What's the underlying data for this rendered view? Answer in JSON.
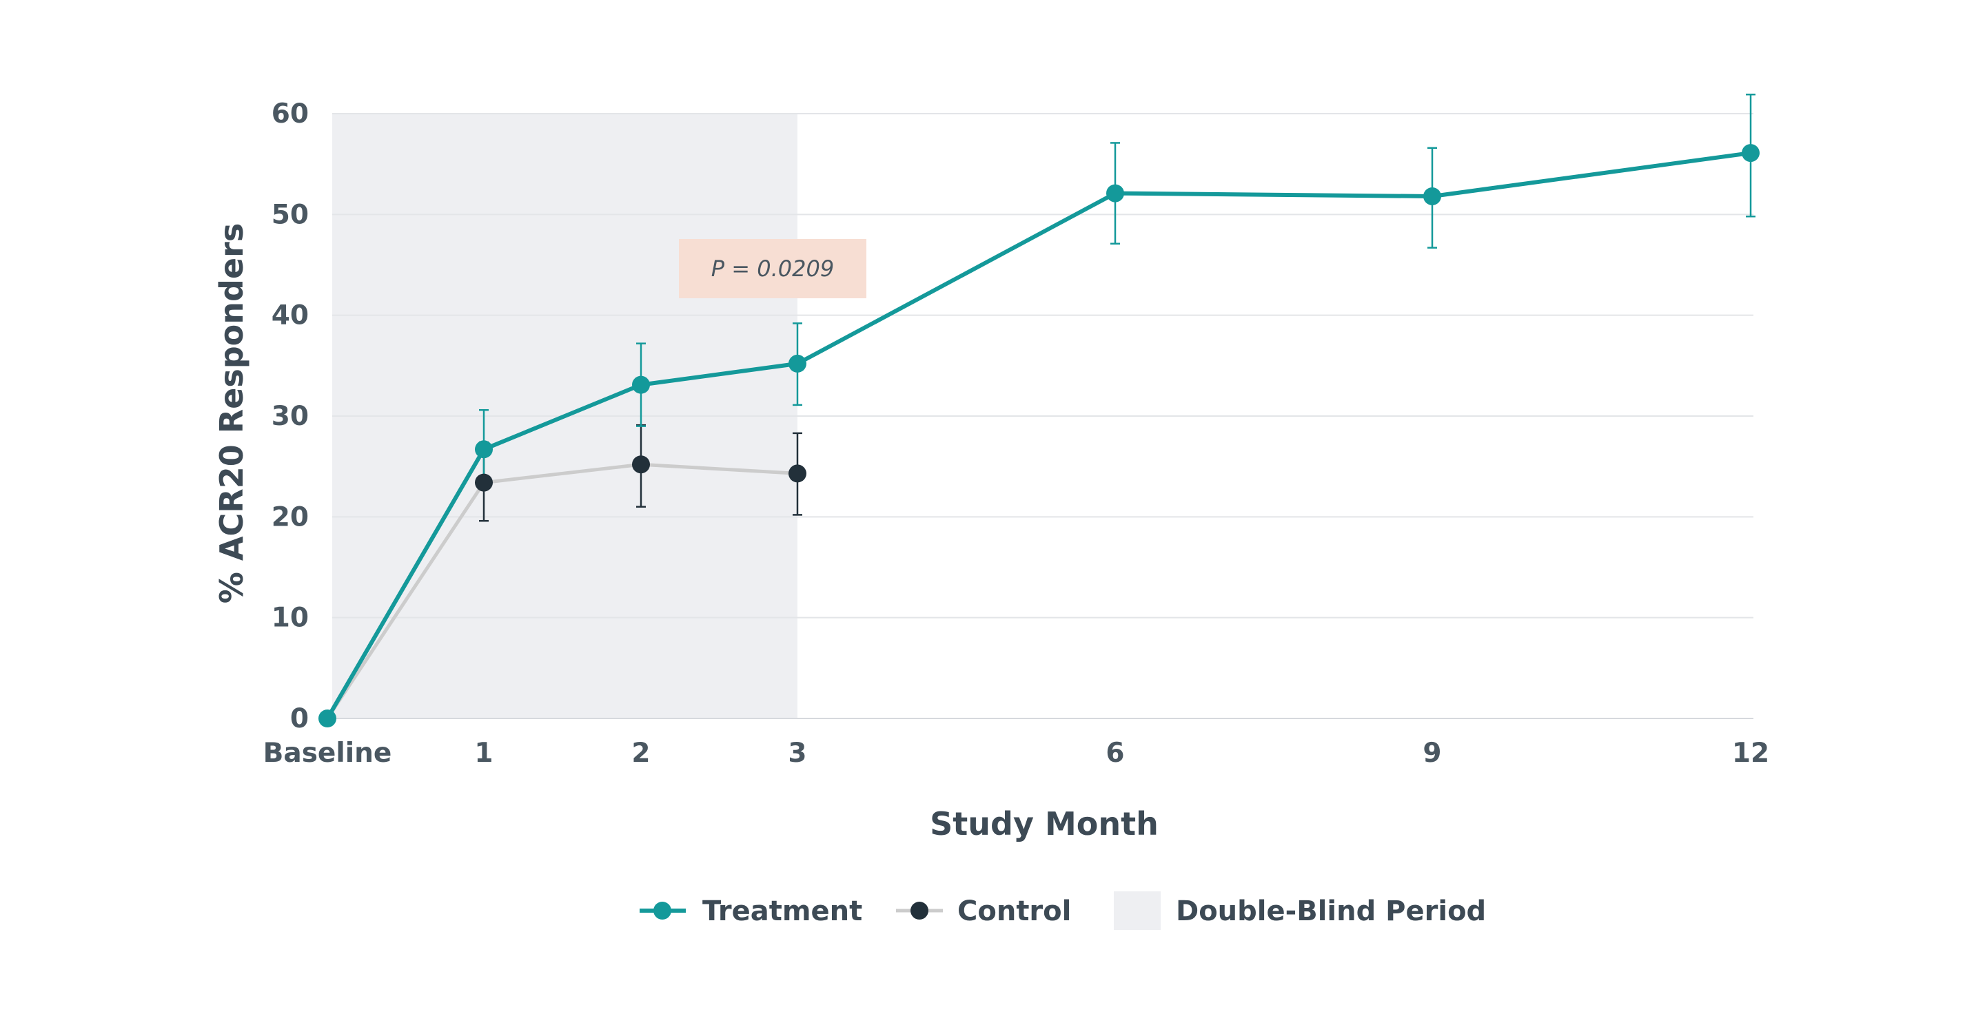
{
  "chart_data": {
    "type": "line",
    "title": "",
    "xlabel": "Study Month",
    "ylabel": "% ACR20 Responders",
    "categories": [
      "Baseline",
      "1",
      "2",
      "3",
      "6",
      "9",
      "12"
    ],
    "x": [
      0,
      1,
      2,
      3,
      6,
      9,
      12
    ],
    "ylim": [
      0,
      60
    ],
    "yticks": [
      0,
      10,
      20,
      30,
      40,
      50,
      60
    ],
    "grid": "horizontal",
    "legend_placement": "bottom-center",
    "series": [
      {
        "name": "Treatment",
        "color": "#14999a",
        "x": [
          0,
          1,
          2,
          3,
          6,
          9,
          12
        ],
        "values": [
          0,
          26.7,
          33.1,
          35.2,
          52.1,
          51.8,
          56.1
        ],
        "error_high": [
          null,
          30.6,
          37.2,
          39.2,
          57.1,
          56.6,
          61.9
        ],
        "error_low": [
          null,
          22.8,
          29.0,
          31.1,
          47.1,
          46.7,
          49.8
        ]
      },
      {
        "name": "Control",
        "color": "#cccccc",
        "marker_color": "#22303a",
        "x": [
          0,
          1,
          2,
          3
        ],
        "values": [
          0,
          23.4,
          25.2,
          24.3
        ],
        "error_high": [
          null,
          27.4,
          29.1,
          28.3
        ],
        "error_low": [
          null,
          19.6,
          21.0,
          20.2
        ]
      }
    ],
    "shaded_region": {
      "name": "Double-Blind Period",
      "x_start": 0,
      "x_end": 3,
      "color": "#eeeff2"
    },
    "annotations": [
      {
        "text": "P = 0.0209",
        "background": "#f7ded3"
      }
    ]
  }
}
